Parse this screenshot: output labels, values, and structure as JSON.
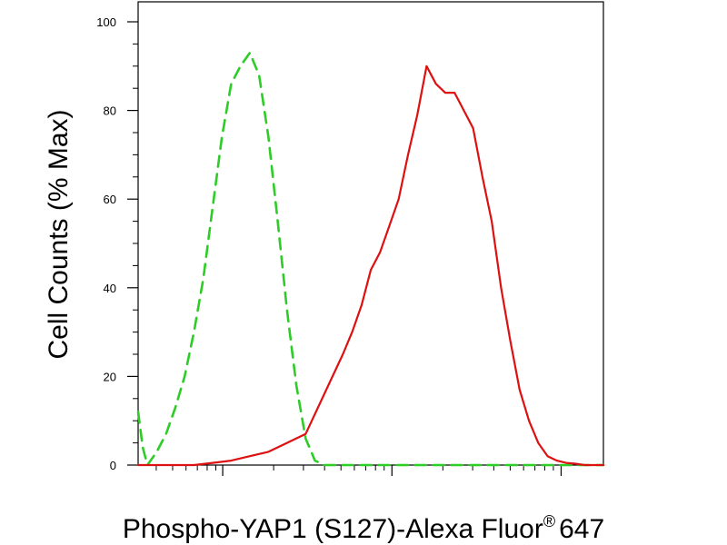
{
  "chart_data": {
    "type": "line",
    "title": "",
    "xlabel": "Phospho-YAP1 (S127)-Alexa Fluor",
    "xlabel_superscript": "®",
    "xlabel_suffix": "647",
    "ylabel": "Cell Counts (% Max)",
    "xscale": "log",
    "xlim": [
      0,
      1
    ],
    "ylim": [
      0,
      100
    ],
    "yticks": [
      0,
      20,
      40,
      60,
      80,
      100
    ],
    "ytick_labels": [
      "0",
      "20",
      "40",
      "60",
      "80",
      "100"
    ],
    "grid": false,
    "legend": "none",
    "series": [
      {
        "style": "dashed",
        "color": "#2ecc27",
        "x": [
          0.0,
          0.01,
          0.02,
          0.04,
          0.06,
          0.08,
          0.1,
          0.12,
          0.14,
          0.16,
          0.18,
          0.2,
          0.22,
          0.24,
          0.26,
          0.28,
          0.3,
          0.32,
          0.34,
          0.36,
          0.38,
          0.4,
          1.0
        ],
        "y": [
          12,
          4,
          0,
          3,
          7,
          13,
          20,
          30,
          42,
          58,
          74,
          86,
          90,
          93,
          88,
          74,
          55,
          35,
          18,
          6,
          1,
          0,
          0
        ]
      },
      {
        "style": "solid",
        "color": "#dd1111",
        "x": [
          0.0,
          0.12,
          0.16,
          0.2,
          0.24,
          0.28,
          0.32,
          0.36,
          0.4,
          0.44,
          0.46,
          0.48,
          0.5,
          0.52,
          0.54,
          0.56,
          0.58,
          0.6,
          0.62,
          0.64,
          0.66,
          0.68,
          0.7,
          0.72,
          0.74,
          0.76,
          0.78,
          0.8,
          0.82,
          0.84,
          0.86,
          0.88,
          0.9,
          0.92,
          0.94,
          0.96,
          1.0
        ],
        "y": [
          0,
          0,
          0.5,
          1,
          2,
          3,
          5,
          7,
          16,
          25,
          30,
          36,
          44,
          48,
          54,
          60,
          70,
          79,
          90,
          86,
          84,
          84,
          80,
          76,
          65,
          55,
          40,
          28,
          17,
          10,
          5,
          2,
          1,
          0.5,
          0.3,
          0,
          0
        ]
      }
    ]
  }
}
